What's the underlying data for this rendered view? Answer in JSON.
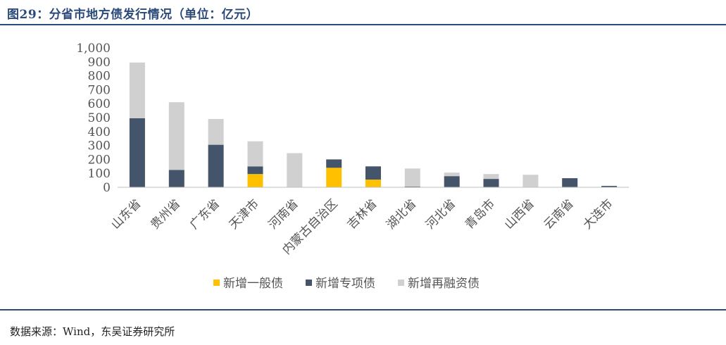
{
  "figure": {
    "title": "图29：分省市地方债发行情况（单位：亿元）",
    "source": "数据来源：Wind，东吴证券研究所"
  },
  "chart_data": {
    "type": "bar",
    "stacked": true,
    "title": "分省市地方债发行情况（单位：亿元）",
    "xlabel": "",
    "ylabel": "",
    "ylim": [
      0,
      1000
    ],
    "yticks": [
      0,
      100,
      200,
      300,
      400,
      500,
      600,
      700,
      800,
      900,
      1000
    ],
    "ytick_labels": [
      "0",
      "100",
      "200",
      "300",
      "400",
      "500",
      "600",
      "700",
      "800",
      "900",
      "1,000"
    ],
    "grid": false,
    "legend_position": "bottom",
    "categories": [
      "山东省",
      "贵州省",
      "广东省",
      "天津市",
      "河南省",
      "内蒙古自治区",
      "吉林省",
      "湖北省",
      "河北省",
      "青岛市",
      "山西省",
      "云南省",
      "大连市"
    ],
    "series": [
      {
        "name": "新增一般债",
        "color": "#ffc000",
        "values": [
          0,
          0,
          0,
          95,
          0,
          140,
          55,
          0,
          0,
          0,
          0,
          0,
          0
        ]
      },
      {
        "name": "新增专项债",
        "color": "#44546a",
        "values": [
          495,
          125,
          305,
          55,
          0,
          60,
          95,
          5,
          80,
          60,
          0,
          65,
          10
        ]
      },
      {
        "name": "新增再融资债",
        "color": "#d0d0d0",
        "values": [
          400,
          485,
          185,
          180,
          245,
          0,
          0,
          130,
          25,
          35,
          90,
          0,
          0
        ]
      }
    ]
  }
}
